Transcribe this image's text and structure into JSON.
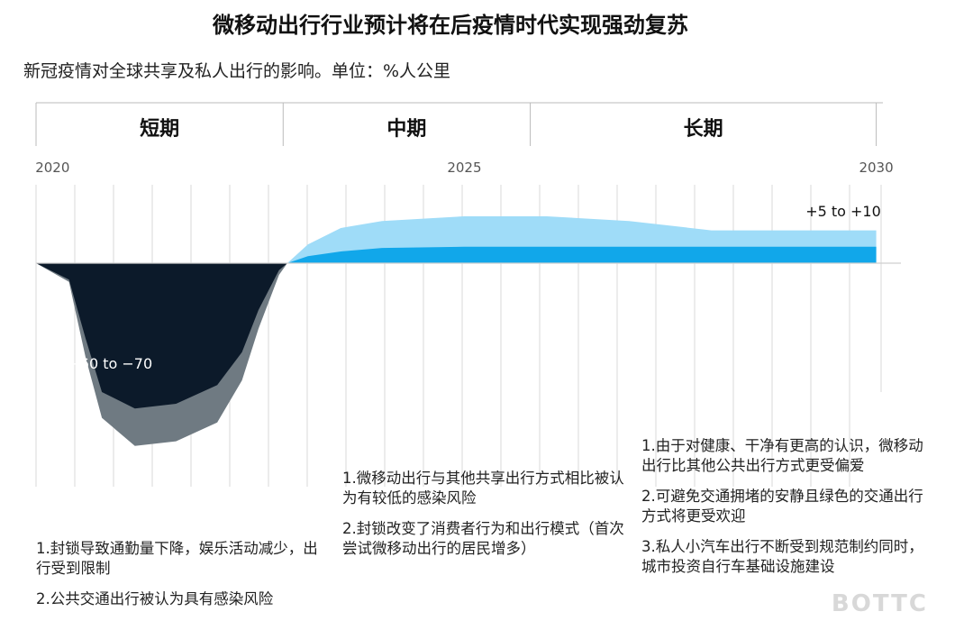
{
  "title": "微移动出行行业预计将在后疫情时代实现强劲复苏",
  "subtitle": "新冠疫情对全球共享及私人出行的影响。单位：%人公里",
  "chart_data": {
    "type": "area",
    "x_ticks": [
      {
        "year": 2020,
        "label": "2020"
      },
      {
        "year": 2025,
        "label": "2025"
      },
      {
        "year": 2030,
        "label": "2030"
      }
    ],
    "xlim": [
      2019.8,
      2030.3
    ],
    "phases": [
      {
        "label": "短期",
        "start": 2019.8,
        "end": 2022.8
      },
      {
        "label": "中期",
        "start": 2022.8,
        "end": 2025.8
      },
      {
        "label": "长期",
        "start": 2025.8,
        "end": 2030.0
      }
    ],
    "annotations": [
      {
        "text": "−60 to −70",
        "year": 2020.7,
        "value": -45
      },
      {
        "text": "+5 to +10",
        "year": 2029.6,
        "value": 20
      }
    ],
    "colors": {
      "decline_outer": "#6f7a82",
      "decline_inner": "#0c1a2a",
      "growth_outer": "#9fdcf8",
      "growth_inner": "#11a7ea",
      "grid": "#d9d9d9",
      "axis": "#bbbbbb"
    },
    "series": [
      {
        "band": "decline_outer",
        "x": [
          2019.8,
          2020.2,
          2020.4,
          2020.6,
          2021.0,
          2021.5,
          2022.0,
          2022.3,
          2022.5,
          2022.75,
          2022.85
        ],
        "values": [
          0,
          -8,
          -40,
          -66,
          -78,
          -76,
          -68,
          -50,
          -28,
          -5,
          0
        ]
      },
      {
        "band": "decline_inner",
        "x": [
          2019.8,
          2020.2,
          2020.4,
          2020.6,
          2021.0,
          2021.5,
          2022.0,
          2022.3,
          2022.5,
          2022.75,
          2022.85
        ],
        "values": [
          0,
          -7,
          -32,
          -55,
          -62,
          -60,
          -52,
          -38,
          -20,
          -3,
          0
        ]
      },
      {
        "band": "growth_outer",
        "x": [
          2022.85,
          2023.1,
          2023.5,
          2024.0,
          2025.0,
          2026.0,
          2027.0,
          2028.0,
          2029.0,
          2030.0
        ],
        "values": [
          0,
          8,
          15,
          18,
          20,
          20,
          18,
          14,
          14,
          14
        ]
      },
      {
        "band": "growth_inner",
        "x": [
          2022.85,
          2023.1,
          2023.5,
          2024.0,
          2025.0,
          2026.0,
          2027.0,
          2028.0,
          2029.0,
          2030.0
        ],
        "values": [
          0,
          3,
          5,
          6.5,
          7,
          7,
          7,
          7,
          7,
          7
        ]
      }
    ]
  },
  "notes": {
    "short": [
      "1.封锁导致通勤量下降，娱乐活动减少，出行受到限制",
      "2.公共交通出行被认为具有感染风险"
    ],
    "mid": [
      "1.微移动出行与其他共享出行方式相比被认为有较低的感染风险",
      "2.封锁改变了消费者行为和出行模式（首次尝试微移动出行的居民增多）"
    ],
    "long": [
      "1.由于对健康、干净有更高的认识，微移动出行比其他公共出行方式更受偏爱",
      "2.可避免交通拥堵的安静且绿色的交通出行方式将更受欢迎",
      "3.私人小汽车出行不断受到规范制约同时，城市投资自行车基础设施建设"
    ]
  },
  "watermark": "BOTTC"
}
